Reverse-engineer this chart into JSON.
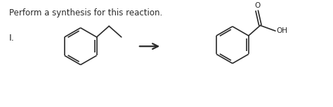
{
  "title_text": "Perform a synthesis for this reaction.",
  "label_text": "I.",
  "title_fontsize": 8.5,
  "label_fontsize": 9.5,
  "bg_color": "#ffffff",
  "line_color": "#2a2a2a",
  "text_color": "#2a2a2a",
  "line_width": 1.2,
  "fig_width": 4.74,
  "fig_height": 1.53,
  "dpi": 100,
  "oh_fontsize": 7.5,
  "o_fontsize": 7.5
}
